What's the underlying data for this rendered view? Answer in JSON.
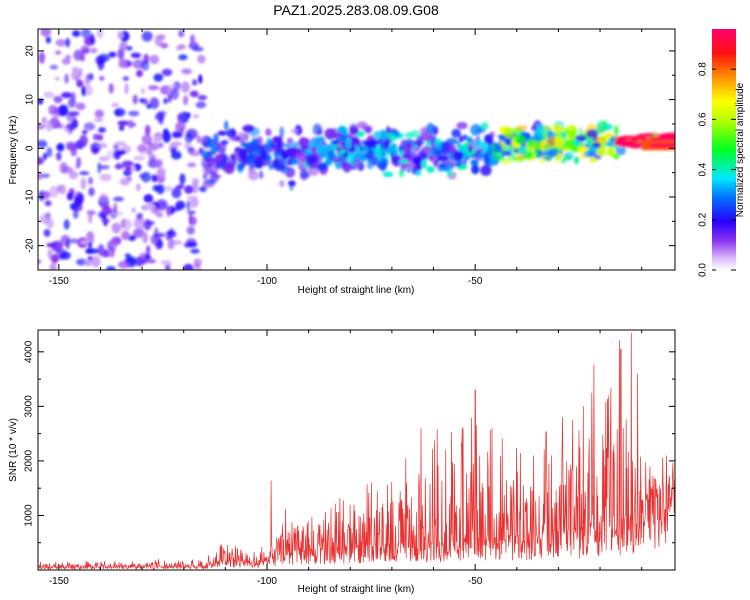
{
  "title": "PAZ1.2025.283.08.09.G08",
  "chart_data": [
    {
      "type": "heatmap",
      "xlabel": "Height of straight line (km)",
      "ylabel": "Frequency (Hz)",
      "xlim": [
        -155,
        -2
      ],
      "ylim": [
        -25,
        24.5
      ],
      "xticks": [
        -150,
        -100,
        -50
      ],
      "yticks": [
        -20,
        -10,
        0,
        10,
        20
      ],
      "colorbar": {
        "label": "Normalized spectral amplitude",
        "range": [
          0,
          0.96
        ],
        "ticks": [
          "0.0",
          "0.2",
          "0.4",
          "0.6",
          "0.8"
        ],
        "tick_values": [
          0,
          0.2,
          0.4,
          0.6,
          0.8
        ],
        "colormap": "rainbow"
      },
      "description_bands": [
        {
          "x_range": [
            -155,
            -115
          ],
          "freq_spread": [
            -25,
            24
          ],
          "amplitude": 0.1
        },
        {
          "x_range": [
            -115,
            -90
          ],
          "freq_spread": [
            -8,
            5
          ],
          "amplitude": 0.12
        },
        {
          "x_range": [
            -90,
            -45
          ],
          "freq_spread": [
            -6,
            5
          ],
          "amplitude": 0.16
        },
        {
          "x_range": [
            -45,
            -15
          ],
          "freq_spread": [
            -3,
            5
          ],
          "amplitude": 0.3
        },
        {
          "x_range": [
            -15,
            -2
          ],
          "freq_spread": [
            0,
            3
          ],
          "amplitude": 0.95
        }
      ]
    },
    {
      "type": "line",
      "xlabel": "Height of straight line (km)",
      "ylabel": "SNR (10 * v/v)",
      "xlim": [
        -155,
        -2
      ],
      "ylim": [
        0,
        4400
      ],
      "xticks": [
        -150,
        -100,
        -50
      ],
      "yticks": [
        1000,
        2000,
        3000,
        4000
      ],
      "color": "#e83030",
      "envelope": [
        {
          "x": -155,
          "base": 50,
          "peak": 150
        },
        {
          "x": -115,
          "base": 60,
          "peak": 200
        },
        {
          "x": -112,
          "base": 150,
          "peak": 450
        },
        {
          "x": -100,
          "base": 150,
          "peak": 500
        },
        {
          "x": -95,
          "base": 300,
          "peak": 1200
        },
        {
          "x": -80,
          "base": 400,
          "peak": 1350
        },
        {
          "x": -60,
          "base": 450,
          "peak": 2600
        },
        {
          "x": -50,
          "base": 500,
          "peak": 2900
        },
        {
          "x": -35,
          "base": 600,
          "peak": 2400
        },
        {
          "x": -25,
          "base": 700,
          "peak": 3500
        },
        {
          "x": -15,
          "base": 800,
          "peak": 4300
        },
        {
          "x": -10,
          "base": 1100,
          "peak": 2200
        },
        {
          "x": -2,
          "base": 1500,
          "peak": 2000
        }
      ],
      "notable_peaks": [
        {
          "x": -126,
          "y": 200
        },
        {
          "x": -111,
          "y": 480
        },
        {
          "x": -99,
          "y": 1640
        },
        {
          "x": -63,
          "y": 2600
        },
        {
          "x": -50,
          "y": 3300
        },
        {
          "x": -36,
          "y": 2100
        },
        {
          "x": -29,
          "y": 2800
        },
        {
          "x": -24,
          "y": 3000
        },
        {
          "x": -22,
          "y": 3250
        },
        {
          "x": -18,
          "y": 3200
        },
        {
          "x": -15,
          "y": 4050
        },
        {
          "x": -12.5,
          "y": 4350
        },
        {
          "x": -11,
          "y": 3600
        },
        {
          "x": -8,
          "y": 1900
        },
        {
          "x": -4,
          "y": 2100
        }
      ]
    }
  ]
}
